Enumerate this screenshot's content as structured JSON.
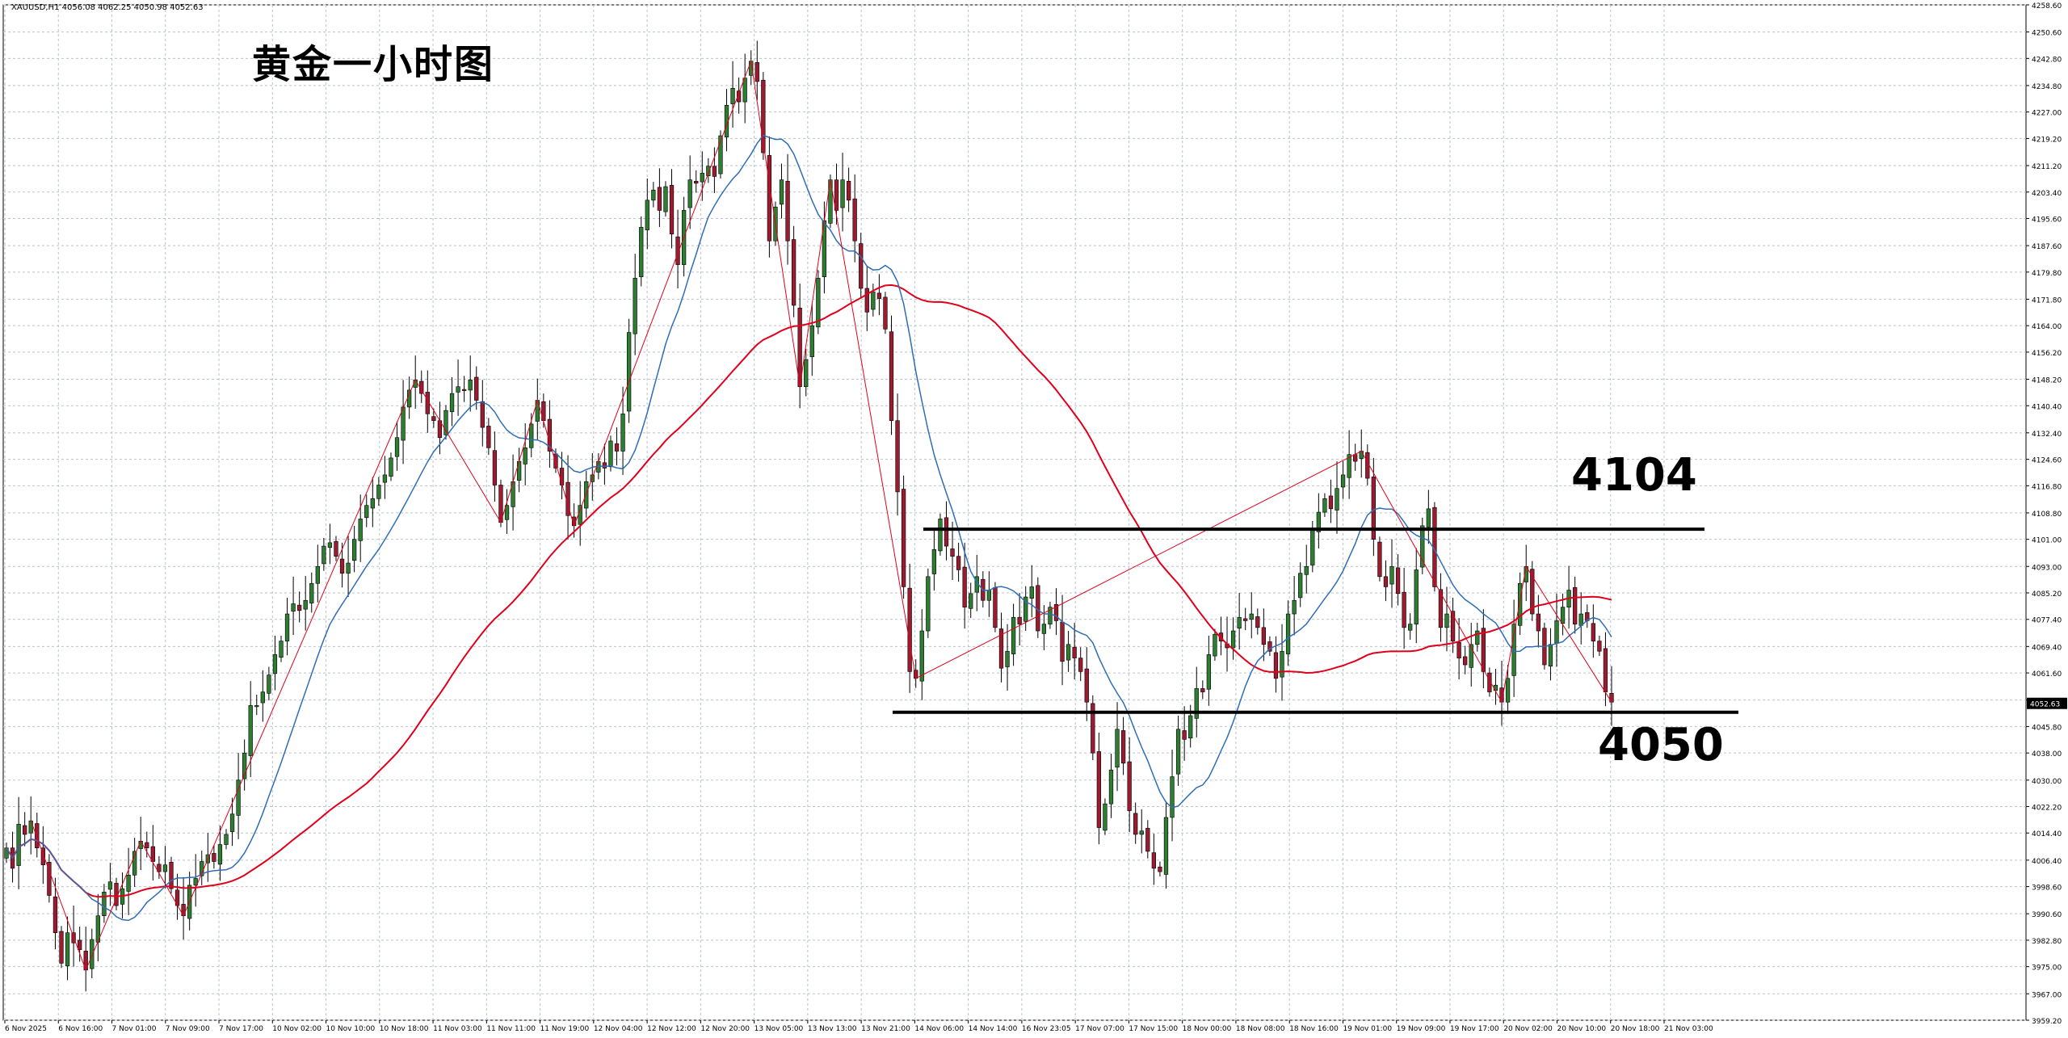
{
  "header": {
    "symbol_info": "XAUUSD,H1  4056.08 4062.25 4050.98 4052.63",
    "title": "黄金一小时图"
  },
  "annotations": {
    "resistance_label": "4104",
    "support_label": "4050"
  },
  "current_price_label": "4052.63",
  "chart_data": {
    "type": "candlestick",
    "symbol": "XAUUSD",
    "timeframe": "H1",
    "title": "黄金一小时图",
    "ylim": [
      3959.2,
      4258.6
    ],
    "y_ticks": [
      "4258.60",
      "4250.60",
      "4242.80",
      "4234.80",
      "4227.00",
      "4219.20",
      "4211.20",
      "4203.40",
      "4195.60",
      "4187.60",
      "4179.80",
      "4171.80",
      "4164.00",
      "4156.20",
      "4148.20",
      "4140.40",
      "4132.40",
      "4124.60",
      "4116.80",
      "4108.80",
      "4101.00",
      "4093.00",
      "4085.20",
      "4077.40",
      "4069.40",
      "4061.60",
      "4053.60",
      "4045.80",
      "4038.00",
      "4030.00",
      "4022.20",
      "4014.40",
      "4006.40",
      "3998.60",
      "3990.60",
      "3982.80",
      "3975.00",
      "3967.00",
      "3959.20"
    ],
    "x_ticks": [
      "6 Nov 2025",
      "6 Nov 16:00",
      "7 Nov 01:00",
      "7 Nov 09:00",
      "7 Nov 17:00",
      "10 Nov 02:00",
      "10 Nov 10:00",
      "10 Nov 18:00",
      "11 Nov 03:00",
      "11 Nov 11:00",
      "11 Nov 19:00",
      "12 Nov 04:00",
      "12 Nov 12:00",
      "12 Nov 20:00",
      "13 Nov 05:00",
      "13 Nov 13:00",
      "13 Nov 21:00",
      "14 Nov 06:00",
      "14 Nov 14:00",
      "16 Nov 23:05",
      "17 Nov 07:00",
      "17 Nov 15:00",
      "18 Nov 00:00",
      "18 Nov 08:00",
      "18 Nov 16:00",
      "19 Nov 01:00",
      "19 Nov 09:00",
      "19 Nov 17:00",
      "20 Nov 02:00",
      "20 Nov 10:00",
      "20 Nov 18:00",
      "21 Nov 03:00"
    ],
    "bull_color": "#2e7d32",
    "bear_color": "#9b1b30",
    "ma_fast_color": "#2f6db5",
    "ma_slow_color": "#e0001b",
    "zigzag_color": "#e0001b",
    "closes": [
      4010,
      4004,
      4017,
      4014,
      4018,
      4010,
      4005,
      3996,
      3985,
      3976,
      3985,
      3982,
      3980,
      3974,
      3983,
      3990,
      3997,
      4000,
      3993,
      3998,
      4002,
      4009,
      4012,
      4010,
      4006,
      4003,
      4005,
      3998,
      3993,
      3990,
      3999,
      4001,
      4006,
      4008,
      4006,
      4011,
      4014,
      4020,
      4030,
      4038,
      4052,
      4052,
      4056,
      4061,
      4067,
      4071,
      4079,
      4082,
      4080,
      4083,
      4088,
      4093,
      4099,
      4100,
      4096,
      4091,
      4094,
      4101,
      4107,
      4111,
      4113,
      4117,
      4120,
      4125,
      4131,
      4140,
      4145,
      4148,
      4144,
      4138,
      4136,
      4131,
      4139,
      4144,
      4146,
      4145,
      4148,
      4142,
      4134,
      4128,
      4117,
      4106,
      4111,
      4118,
      4124,
      4128,
      4135,
      4142,
      4136,
      4127,
      4122,
      4117,
      4108,
      4105,
      4111,
      4118,
      4120,
      4124,
      4122,
      4130,
      4127,
      4138,
      4162,
      4178,
      4193,
      4201,
      4204,
      4198,
      4205,
      4191,
      4182,
      4198,
      4207,
      4206,
      4209,
      4211,
      4208,
      4220,
      4229,
      4234,
      4230,
      4237,
      4242,
      4236,
      4215,
      4189,
      4199,
      4207,
      4189,
      4170,
      4146,
      4154,
      4164,
      4178,
      4195,
      4207,
      4198,
      4207,
      4201,
      4189,
      4175,
      4168,
      4174,
      4172,
      4163,
      4136,
      4115,
      4087,
      4062,
      4060,
      4074,
      4090,
      4098,
      4107,
      4099,
      4096,
      4092,
      4081,
      4085,
      4090,
      4083,
      4086,
      4075,
      4063,
      4068,
      4078,
      4076,
      4084,
      4087,
      4074,
      4076,
      4081,
      4077,
      4065,
      4070,
      4066,
      4062,
      4053,
      4038,
      4016,
      4023,
      4033,
      4045,
      4035,
      4021,
      4014,
      4015,
      4009,
      4004,
      4003,
      4019,
      4031,
      4045,
      4042,
      4049,
      4057,
      4056,
      4067,
      4073,
      4071,
      4069,
      4074,
      4078,
      4077,
      4079,
      4075,
      4070,
      4068,
      4060,
      4068,
      4079,
      4083,
      4091,
      4093,
      4104,
      4109,
      4113,
      4110,
      4116,
      4120,
      4126,
      4124,
      4127,
      4119,
      4101,
      4090,
      4087,
      4093,
      4085,
      4075,
      4076,
      4092,
      4105,
      4110,
      4087,
      4075,
      4079,
      4071,
      4066,
      4064,
      4070,
      4074,
      4062,
      4056,
      4058,
      4053,
      4060,
      4076,
      4088,
      4093,
      4079,
      4074,
      4064,
      4070,
      4077,
      4081,
      4086,
      4076,
      4079,
      4077,
      4071,
      4068,
      4056,
      4053
    ]
  }
}
